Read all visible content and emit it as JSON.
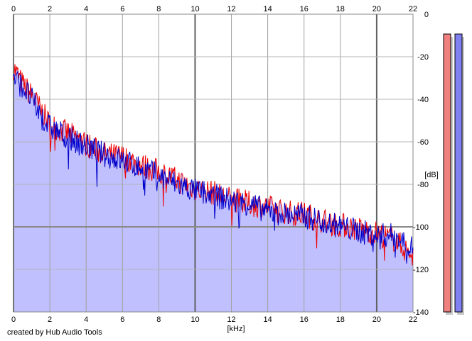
{
  "credit": "created by Hub Audio Tools",
  "chart_data": {
    "type": "area",
    "xlabel": "[kHz]",
    "ylabel": "[dB]",
    "xlim": [
      0,
      22
    ],
    "ylim": [
      -140,
      0
    ],
    "x_ticks": [
      0,
      2,
      4,
      6,
      8,
      10,
      12,
      14,
      16,
      18,
      20,
      22
    ],
    "y_ticks": [
      0,
      -20,
      -40,
      -60,
      -80,
      -100,
      -120,
      -140
    ],
    "grid": true,
    "fill_color": "#c0c0ff",
    "series": [
      {
        "color": "#ee0000",
        "x": [
          0,
          0.5,
          1,
          1.5,
          2,
          3,
          4,
          5,
          6,
          7,
          8,
          9,
          10,
          11,
          12,
          13,
          14,
          15,
          16,
          17,
          18,
          19,
          20,
          21,
          22
        ],
        "values": [
          -25,
          -33,
          -38,
          -45,
          -52,
          -56,
          -61,
          -66,
          -67,
          -71,
          -74,
          -78,
          -82,
          -84,
          -87,
          -89,
          -91,
          -93,
          -94,
          -97,
          -99,
          -101,
          -103,
          -106,
          -114
        ]
      },
      {
        "color": "#0000cc",
        "x": [
          0,
          0.5,
          1,
          1.5,
          2,
          3,
          4,
          5,
          6,
          7,
          8,
          9,
          10,
          11,
          12,
          13,
          14,
          15,
          16,
          17,
          18,
          19,
          20,
          21,
          22
        ],
        "values": [
          -30,
          -34,
          -40,
          -48,
          -53,
          -58,
          -62,
          -66,
          -69,
          -72,
          -76,
          -80,
          -83,
          -85,
          -88,
          -89,
          -93,
          -94,
          -95,
          -97,
          -100,
          -102,
          -104,
          -104,
          -110
        ]
      }
    ],
    "meters": [
      {
        "color": "#f08080",
        "level": 1.0
      },
      {
        "color": "#8080f0",
        "level": 1.0
      }
    ]
  }
}
